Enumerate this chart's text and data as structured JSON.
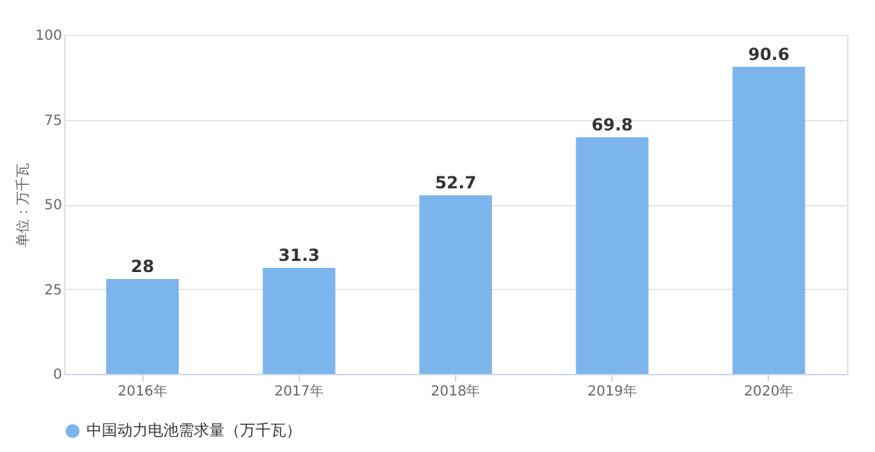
{
  "chart_data": {
    "type": "bar",
    "ylabel": "单位：万千瓦",
    "categories": [
      "2016年",
      "2017年",
      "2018年",
      "2019年",
      "2020年"
    ],
    "series": [
      {
        "name": "中国动力电池需求量（万千瓦）",
        "color": "#7cb5ec",
        "values": [
          28,
          31.3,
          52.7,
          69.8,
          90.6
        ]
      }
    ],
    "ylim": [
      0,
      100
    ],
    "yticks": [
      0,
      25,
      50,
      75,
      100
    ],
    "grid": "y",
    "legend": "bottom",
    "data_labels": true
  }
}
